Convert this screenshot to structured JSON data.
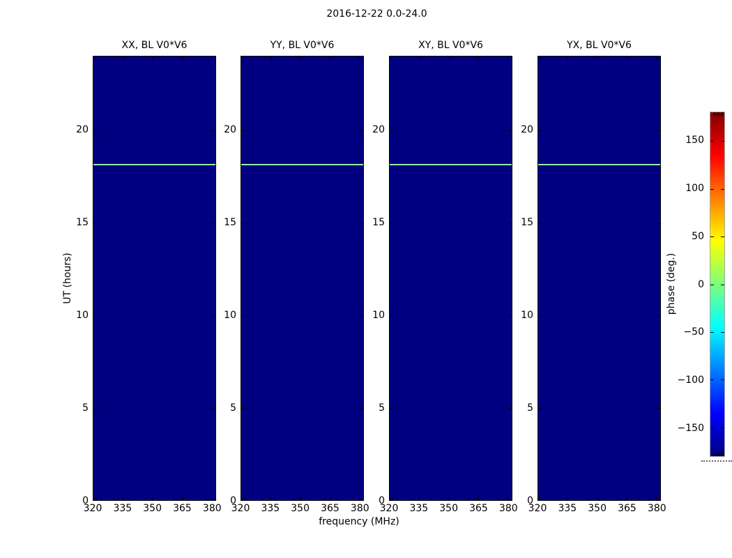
{
  "figure_title": "2016-12-22 0.0-24.0",
  "axes": {
    "x_label": "frequency (MHz)",
    "y_label": "UT (hours)",
    "x_ticks": [
      "320",
      "335",
      "350",
      "365",
      "380"
    ],
    "y_ticks": [
      "0",
      "5",
      "10",
      "15",
      "20"
    ]
  },
  "panels": [
    {
      "title": "XX, BL V0*V6"
    },
    {
      "title": "YY, BL V0*V6"
    },
    {
      "title": "XY, BL V0*V6"
    },
    {
      "title": "YX, BL V0*V6"
    }
  ],
  "colorbar": {
    "label": "phase (deg.)",
    "ticks": [
      "150",
      "100",
      "50",
      "0",
      "−50",
      "−100",
      "−150"
    ]
  },
  "colors": {
    "panel_background": "#000080",
    "phase_line": "#8cf5a0",
    "tick_color": "#000000",
    "colorbar_outline": "#a6a6a6",
    "jet_gradient_stops": [
      "#000080",
      "#0000ff",
      "#00ffff",
      "#7dff7a",
      "#ffff00",
      "#ff0000",
      "#800000"
    ],
    "jet_gradient_percents": [
      0,
      12.5,
      37.5,
      50,
      62.5,
      87.5,
      100
    ]
  },
  "chart_data": {
    "type": "heatmap",
    "title": "2016-12-22 0.0-24.0",
    "xlabel": "frequency (MHz)",
    "ylabel": "UT (hours)",
    "xlim": [
      320,
      382
    ],
    "ylim": [
      0,
      24
    ],
    "x_ticks": [
      320,
      335,
      350,
      365,
      380
    ],
    "y_ticks": [
      0,
      5,
      10,
      15,
      20
    ],
    "colormap": "jet",
    "colorbar": {
      "label": "phase (deg.)",
      "lim": [
        -180,
        180
      ],
      "ticks": [
        150,
        100,
        50,
        0,
        -50,
        -100,
        -150
      ]
    },
    "panels": [
      {
        "title": "XX, BL V0*V6",
        "polarization": "XX",
        "baseline": "V0*V6"
      },
      {
        "title": "YY, BL V0*V6",
        "polarization": "YY",
        "baseline": "V0*V6"
      },
      {
        "title": "XY, BL V0*V6",
        "polarization": "XY",
        "baseline": "V0*V6"
      },
      {
        "title": "YX, BL V0*V6",
        "polarization": "YX",
        "baseline": "V0*V6"
      }
    ],
    "field_description": "All four panels are a uniform dark navy (phase at/near colormap minimum, approx -180 deg or masked) across 320-382 MHz and 0-24 UT hours",
    "features": [
      {
        "type": "horizontal_line",
        "ut_hours": 18.2,
        "extent": "full frequency range, all four panels",
        "approx_phase_deg": 0,
        "color_hex": "#8cf5a0"
      }
    ],
    "legend_position": "colorbar right",
    "grid": false
  }
}
